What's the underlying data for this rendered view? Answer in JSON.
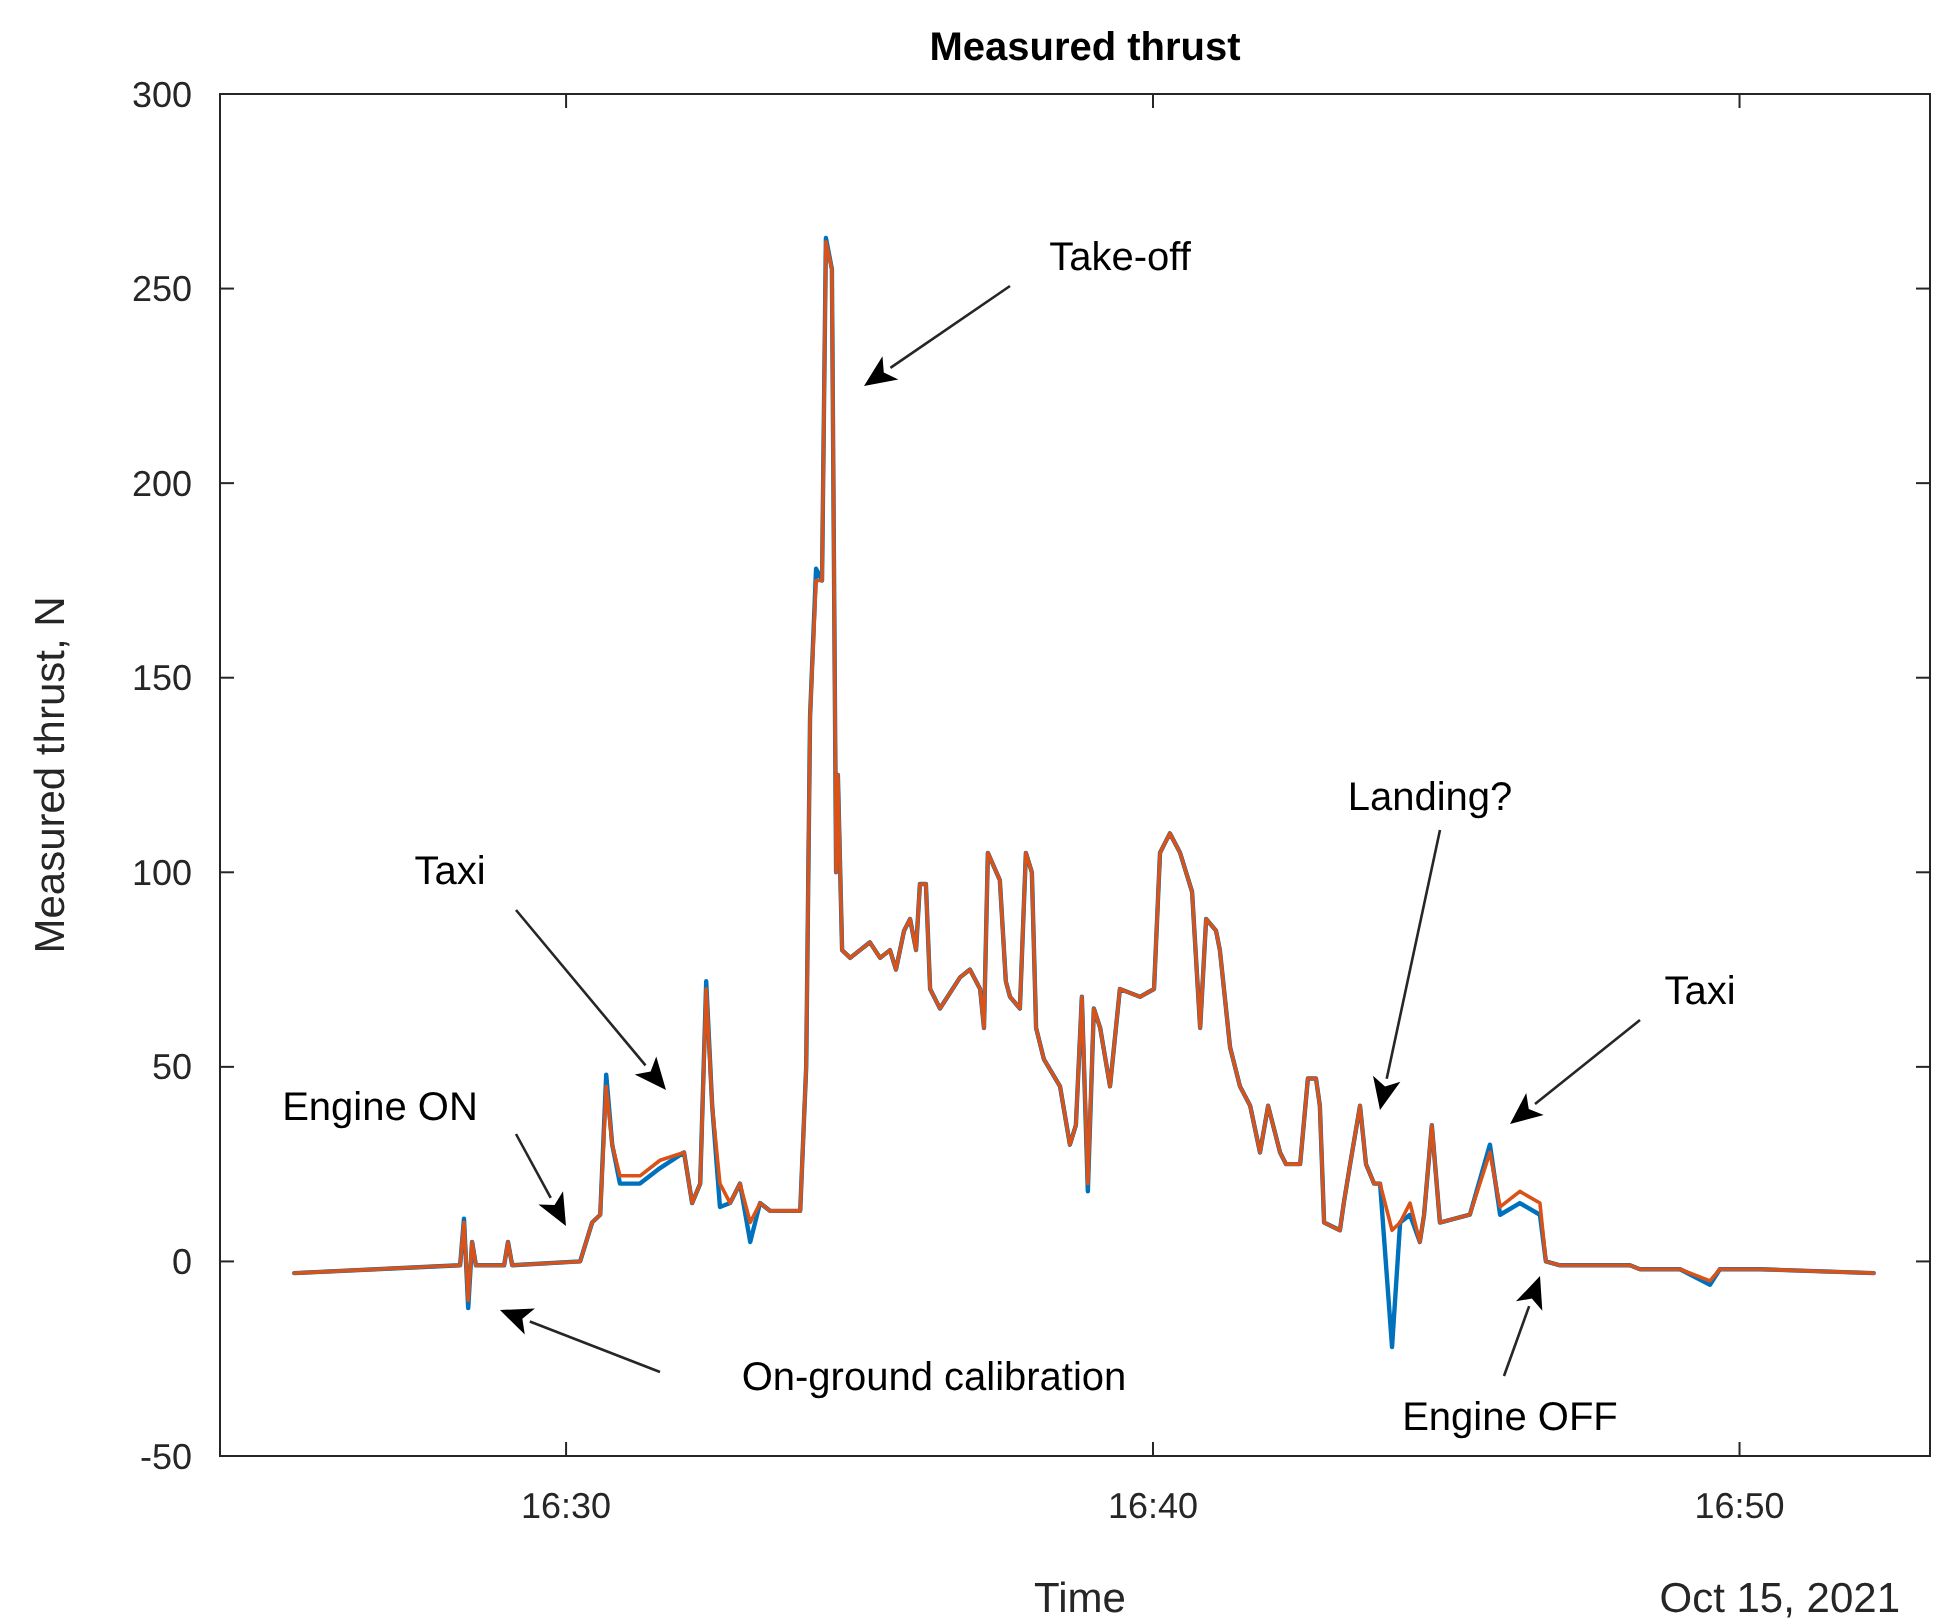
{
  "chart_data": {
    "type": "line",
    "title": "Measured thrust",
    "xlabel": "Time",
    "ylabel": "Measured thrust, N",
    "x": [
      16.4228,
      16.4699,
      16.471,
      16.4722,
      16.4733,
      16.4744,
      16.4824,
      16.4835,
      16.4847,
      16.504,
      16.5074,
      16.5097,
      16.5114,
      16.5131,
      16.5153,
      16.521,
      16.5267,
      16.5335,
      16.5358,
      16.5381,
      16.5398,
      16.5415,
      16.5437,
      16.5466,
      16.5494,
      16.5523,
      16.5551,
      16.5579,
      16.5665,
      16.5682,
      16.5693,
      16.571,
      16.5727,
      16.5738,
      16.5755,
      16.5767,
      16.5772,
      16.5784,
      16.5807,
      16.5863,
      16.5892,
      16.592,
      16.5937,
      16.596,
      16.5977,
      16.5994,
      16.6005,
      16.6022,
      16.6034,
      16.6062,
      16.6119,
      16.6147,
      16.6176,
      16.6187,
      16.6198,
      16.6232,
      16.6249,
      16.6261,
      16.6289,
      16.6306,
      16.6323,
      16.6335,
      16.6357,
      16.6403,
      16.6431,
      16.6448,
      16.6465,
      16.6482,
      16.6499,
      16.6517,
      16.6545,
      16.6573,
      16.663,
      16.667,
      16.6687,
      16.6715,
      16.6744,
      16.6778,
      16.6801,
      16.6818,
      16.6846,
      16.6857,
      16.6886,
      16.6914,
      16.6943,
      16.6971,
      16.6994,
      16.7028,
      16.7045,
      16.7085,
      16.7107,
      16.713,
      16.7141,
      16.7153,
      16.7198,
      16.7209,
      16.7227,
      16.7255,
      16.7272,
      16.7295,
      16.7312,
      16.7346,
      16.7369,
      16.7397,
      16.7425,
      16.7437,
      16.7459,
      16.7482,
      16.7567,
      16.7624,
      16.7653,
      16.7709,
      16.7766,
      16.7783,
      16.7823,
      16.8022,
      16.805,
      16.8164,
      16.8249,
      16.8277,
      16.8391,
      16.8714
    ],
    "series": [
      {
        "color": "#0072bd",
        "values": [
          -3,
          -1,
          11,
          -12,
          5,
          -1,
          -1,
          5,
          -1,
          0,
          10,
          12,
          48,
          30,
          20,
          20,
          24,
          28,
          15,
          20,
          72,
          40,
          14,
          15,
          20,
          5,
          15,
          13,
          13,
          50,
          140,
          178,
          175,
          263,
          255,
          100,
          125,
          80,
          78,
          82,
          78,
          80,
          75,
          85,
          88,
          80,
          97,
          97,
          70,
          65,
          73,
          75,
          70,
          60,
          105,
          98,
          72,
          68,
          65,
          105,
          100,
          60,
          52,
          45,
          30,
          35,
          68,
          18,
          65,
          60,
          45,
          70,
          68,
          70,
          105,
          110,
          105,
          95,
          60,
          88,
          85,
          80,
          55,
          45,
          40,
          28,
          40,
          28,
          25,
          25,
          47,
          47,
          40,
          10,
          8,
          15,
          25,
          40,
          25,
          20,
          20,
          -22,
          10,
          12,
          5,
          12,
          35,
          10,
          12,
          30,
          12,
          15,
          12,
          0,
          -1,
          -1,
          -2,
          -2,
          -6,
          -2,
          -2,
          -3
        ]
      },
      {
        "color": "#d95319",
        "values": [
          -3,
          -1,
          10,
          -10,
          5,
          -1,
          -1,
          5,
          -1,
          0,
          10,
          12,
          45,
          30,
          22,
          22,
          26,
          28,
          15,
          20,
          70,
          40,
          20,
          15,
          20,
          10,
          15,
          13,
          13,
          50,
          140,
          175,
          175,
          262,
          255,
          100,
          125,
          80,
          78,
          82,
          78,
          80,
          75,
          85,
          88,
          80,
          97,
          97,
          70,
          65,
          73,
          75,
          70,
          60,
          105,
          98,
          72,
          68,
          65,
          105,
          100,
          60,
          52,
          45,
          30,
          35,
          68,
          20,
          65,
          60,
          45,
          70,
          68,
          70,
          105,
          110,
          105,
          95,
          60,
          88,
          85,
          80,
          55,
          45,
          40,
          28,
          40,
          28,
          25,
          25,
          47,
          47,
          40,
          10,
          8,
          15,
          25,
          40,
          25,
          20,
          20,
          8,
          10,
          15,
          5,
          12,
          35,
          10,
          12,
          28,
          14,
          18,
          15,
          0,
          -1,
          -1,
          -2,
          -2,
          -5,
          -2,
          -2,
          -3
        ]
      }
    ],
    "xlim": [
      16.4017,
      16.8874
    ],
    "xticks": [
      {
        "value": 16.5,
        "label": "16:30"
      },
      {
        "value": 16.6667,
        "label": "16:40"
      },
      {
        "value": 16.8333,
        "label": "16:50"
      }
    ],
    "ylim": [
      -50,
      300
    ],
    "yticks": [
      -50,
      0,
      50,
      100,
      150,
      200,
      250,
      300
    ],
    "annotations": [
      "Engine ON",
      "Taxi",
      "On-ground calibration",
      "Take-off",
      "Landing?",
      "Taxi",
      "Engine OFF",
      "Oct 15, 2021"
    ]
  }
}
